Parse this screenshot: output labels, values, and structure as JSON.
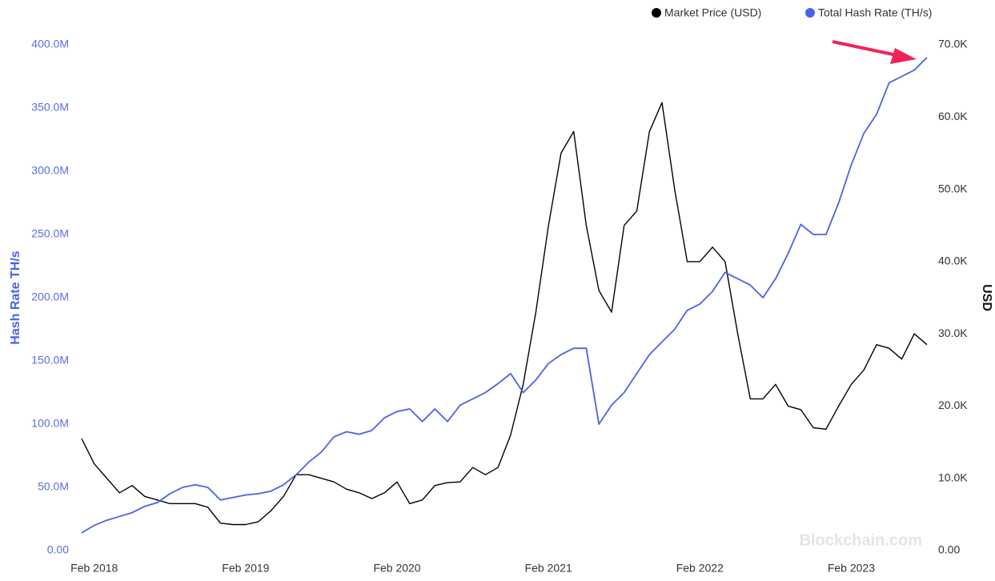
{
  "chart_data": {
    "type": "line",
    "categories": [
      null,
      "Feb 2018",
      null,
      null,
      null,
      null,
      null,
      null,
      null,
      null,
      null,
      null,
      null,
      "Feb 2019",
      null,
      null,
      null,
      null,
      null,
      null,
      null,
      null,
      null,
      null,
      null,
      "Feb 2020",
      null,
      null,
      null,
      null,
      null,
      null,
      null,
      null,
      null,
      null,
      null,
      "Feb 2021",
      null,
      null,
      null,
      null,
      null,
      null,
      null,
      null,
      null,
      null,
      null,
      "Feb 2022",
      null,
      null,
      null,
      null,
      null,
      null,
      null,
      null,
      null,
      null,
      null,
      "Feb 2023",
      null,
      null,
      null,
      null,
      null,
      null
    ],
    "series": [
      {
        "name": "Market Price (USD)",
        "color": "#000000",
        "axis": "y2",
        "values": [
          15500,
          12000,
          10000,
          8000,
          9000,
          7500,
          7000,
          6500,
          6500,
          6500,
          6000,
          3800,
          3600,
          3600,
          4000,
          5500,
          7500,
          10500,
          10500,
          10000,
          9500,
          8500,
          8000,
          7200,
          8000,
          9500,
          6500,
          7000,
          9000,
          9400,
          9500,
          11500,
          10500,
          11500,
          16000,
          23000,
          33000,
          45000,
          55000,
          58000,
          45000,
          36000,
          33000,
          45000,
          47000,
          58000,
          62000,
          50000,
          40000,
          40000,
          42000,
          40000,
          30000,
          21000,
          21000,
          23000,
          20000,
          19500,
          17000,
          16800,
          20000,
          23000,
          25000,
          28500,
          28000,
          26500,
          30000,
          28500
        ]
      },
      {
        "name": "Total Hash Rate (TH/s)",
        "color": "#4a62e8",
        "values": [
          14,
          20,
          24,
          27,
          30,
          35,
          38,
          45,
          50,
          52,
          50,
          40,
          42,
          44,
          45,
          47,
          52,
          60,
          70,
          78,
          90,
          94,
          92,
          95,
          105,
          110,
          112,
          102,
          112,
          102,
          115,
          120,
          125,
          132,
          140,
          125,
          135,
          148,
          155,
          160,
          160,
          100,
          115,
          125,
          140,
          155,
          165,
          175,
          190,
          195,
          205,
          220,
          215,
          210,
          200,
          215,
          235,
          258,
          250,
          250,
          275,
          305,
          330,
          345,
          370,
          375,
          380,
          390
        ]
      }
    ],
    "y_label": "Hash Rate TH/s",
    "y2_label": "USD",
    "ylim": [
      0,
      400000000
    ],
    "yticks": [
      {
        "value": 0,
        "label": "0.00"
      },
      {
        "value": 50000000,
        "label": "50.0M"
      },
      {
        "value": 100000000,
        "label": "100.0M"
      },
      {
        "value": 150000000,
        "label": "150.0M"
      },
      {
        "value": 200000000,
        "label": "200.0M"
      },
      {
        "value": 250000000,
        "label": "250.0M"
      },
      {
        "value": 300000000,
        "label": "300.0M"
      },
      {
        "value": 350000000,
        "label": "350.0M"
      },
      {
        "value": 400000000,
        "label": "400.0M"
      }
    ],
    "y2lim": [
      0,
      70000
    ],
    "y2ticks": [
      {
        "value": 0,
        "label": "0.00"
      },
      {
        "value": 10000,
        "label": "10.0K"
      },
      {
        "value": 20000,
        "label": "20.0K"
      },
      {
        "value": 30000,
        "label": "30.0K"
      },
      {
        "value": 40000,
        "label": "40.0K"
      },
      {
        "value": 50000,
        "label": "50.0K"
      },
      {
        "value": 60000,
        "label": "60.0K"
      },
      {
        "value": 70000,
        "label": "70.0K"
      }
    ],
    "value_scale": 1000000,
    "watermark": "Blockchain.com"
  }
}
